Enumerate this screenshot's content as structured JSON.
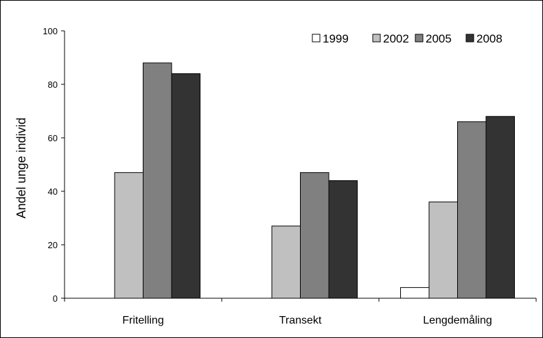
{
  "chart_data": {
    "type": "bar",
    "categories": [
      "Fritelling",
      "Transekt",
      "Lengdemåling"
    ],
    "series": [
      {
        "name": "1999",
        "values": [
          0,
          0,
          4
        ],
        "color": "#ffffff"
      },
      {
        "name": "2002",
        "values": [
          47,
          27,
          36
        ],
        "color": "#c0c0c0"
      },
      {
        "name": "2005",
        "values": [
          88,
          47,
          66
        ],
        "color": "#808080"
      },
      {
        "name": "2008",
        "values": [
          84,
          44,
          68
        ],
        "color": "#333333"
      }
    ],
    "title": "",
    "xlabel": "",
    "ylabel": "Andel unge individ",
    "ylim": [
      0,
      100
    ],
    "yticks": [
      "0",
      "20",
      "40",
      "60",
      "80",
      "100"
    ],
    "legend_position": "top-right",
    "grid": false
  }
}
